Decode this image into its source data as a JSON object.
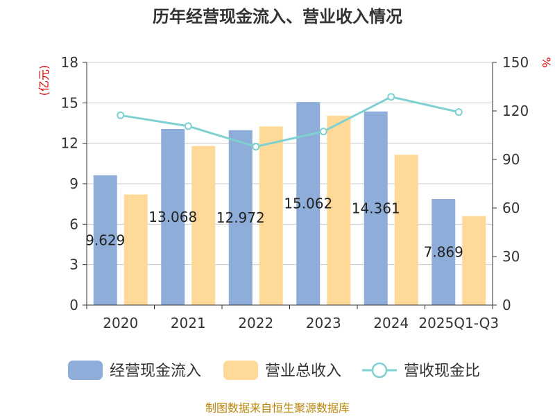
{
  "chart_data": {
    "type": "bar",
    "title": "历年经营现金流入、营业收入情况",
    "categories": [
      "2020",
      "2021",
      "2022",
      "2023",
      "2024",
      "2025Q1-Q3"
    ],
    "series": [
      {
        "name": "经营现金流入",
        "type": "bar",
        "axis": "left",
        "color": "#8eadd9",
        "values": [
          9.629,
          13.068,
          12.972,
          15.062,
          14.361,
          7.869
        ]
      },
      {
        "name": "营业总收入",
        "type": "bar",
        "axis": "left",
        "color": "#ffd998",
        "values": [
          8.2,
          11.8,
          13.25,
          14.05,
          11.15,
          6.6
        ]
      },
      {
        "name": "营收现金比",
        "type": "line",
        "axis": "right",
        "color": "#7fd1d1",
        "values": [
          117.3,
          110.6,
          97.9,
          107.3,
          128.7,
          119.3
        ]
      }
    ],
    "data_labels": [
      "9.629",
      "13.068",
      "12.972",
      "15.062",
      "14.361",
      "7.869"
    ],
    "ylabel_left": "(亿元)",
    "ylabel_right": "%",
    "ylim_left": [
      0,
      18
    ],
    "ylim_right": [
      0,
      150
    ],
    "yticks_left": [
      "0",
      "3",
      "6",
      "9",
      "12",
      "15",
      "18"
    ],
    "yticks_right": [
      "0",
      "30",
      "60",
      "90",
      "120",
      "150"
    ],
    "grid": true,
    "legend_position": "bottom",
    "source": "制图数据来自恒生聚源数据库"
  }
}
